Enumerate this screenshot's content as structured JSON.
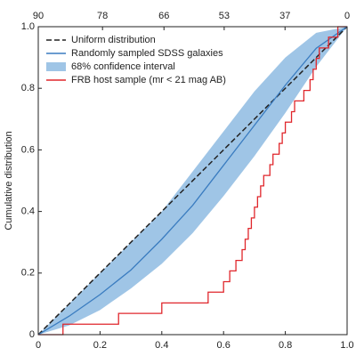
{
  "chart_data": {
    "type": "line",
    "ylabel": "Cumulative distribution",
    "xlim": [
      0,
      1
    ],
    "ylim": [
      0,
      1
    ],
    "xticks": [
      0,
      0.2,
      0.4,
      0.6,
      0.8,
      {
        "value": 1,
        "label": "1.0"
      }
    ],
    "yticks": [
      0,
      0.2,
      0.4,
      0.6,
      0.8,
      {
        "value": 1,
        "label": "1.0"
      }
    ],
    "x2ticks": [
      {
        "value": 0,
        "label": "90"
      },
      {
        "value": 0.208,
        "label": "78"
      },
      {
        "value": 0.407,
        "label": "66"
      },
      {
        "value": 0.602,
        "label": "53"
      },
      {
        "value": 0.799,
        "label": "37"
      },
      {
        "value": 1,
        "label": "0"
      }
    ],
    "legend": "upper left",
    "series": [
      {
        "name": "Uniform distribution",
        "style": "dashed",
        "color": "#222222",
        "x": [
          0,
          1
        ],
        "values": [
          0,
          1
        ]
      },
      {
        "name": "Randomly sampled SDSS galaxies",
        "style": "solid",
        "color": "#3a7cc0",
        "x": [
          0,
          0.1,
          0.2,
          0.3,
          0.4,
          0.5,
          0.6,
          0.7,
          0.8,
          0.9,
          1
        ],
        "values": [
          0,
          0.06,
          0.13,
          0.21,
          0.31,
          0.42,
          0.55,
          0.68,
          0.81,
          0.93,
          1
        ]
      },
      {
        "name": "68% confidence interval",
        "style": "band",
        "color": "#9fc5e6",
        "x": [
          0,
          0.1,
          0.2,
          0.3,
          0.4,
          0.5,
          0.6,
          0.7,
          0.8,
          0.9,
          1
        ],
        "lower": [
          0,
          0.03,
          0.08,
          0.15,
          0.23,
          0.33,
          0.45,
          0.58,
          0.72,
          0.87,
          1
        ],
        "upper": [
          0,
          0.1,
          0.2,
          0.3,
          0.4,
          0.53,
          0.66,
          0.79,
          0.9,
          0.98,
          1
        ]
      },
      {
        "name": "FRB host sample (mr < 21 mag AB)",
        "style": "step",
        "color": "#e0262b",
        "x": [
          0,
          0.08,
          0.26,
          0.4,
          0.55,
          0.6,
          0.62,
          0.64,
          0.66,
          0.67,
          0.68,
          0.69,
          0.7,
          0.71,
          0.72,
          0.73,
          0.75,
          0.76,
          0.78,
          0.79,
          0.8,
          0.82,
          0.83,
          0.86,
          0.88,
          0.89,
          0.9,
          0.91,
          0.94,
          0.97
        ],
        "values": [
          0,
          0.034,
          0.069,
          0.103,
          0.138,
          0.172,
          0.207,
          0.241,
          0.276,
          0.31,
          0.345,
          0.379,
          0.414,
          0.448,
          0.483,
          0.517,
          0.552,
          0.586,
          0.621,
          0.655,
          0.69,
          0.724,
          0.759,
          0.793,
          0.828,
          0.862,
          0.897,
          0.931,
          0.966,
          1
        ]
      }
    ]
  }
}
